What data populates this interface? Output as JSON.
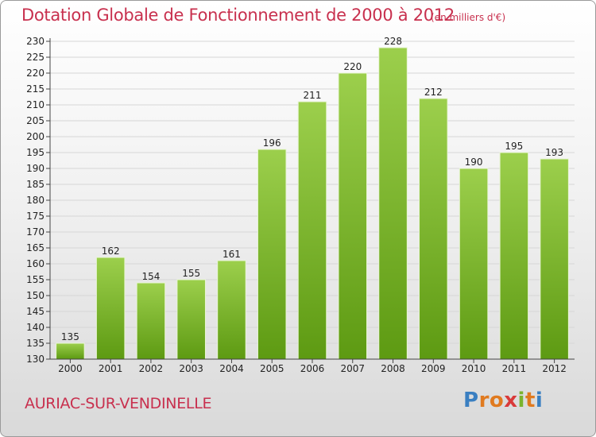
{
  "header": {
    "title": "Dotation Globale de Fonctionnement de 2000 à 2012",
    "subtitle": "(en milliers d'€)"
  },
  "footer": {
    "place": "AURIAC-SUR-VENDINELLE",
    "logo": {
      "letters": [
        "P",
        "r",
        "o",
        "x",
        "i",
        "t",
        "i"
      ],
      "colors": [
        "#3a7fc1",
        "#e07a1f",
        "#e07a1f",
        "#d93a3a",
        "#7ab32e",
        "#e07a1f",
        "#3a7fc1"
      ]
    }
  },
  "colors": {
    "bar_top": "#9ccf4c",
    "bar_bottom": "#5d9a12",
    "bar_edge": "#e8f5d4",
    "grid": "#d6d6d6",
    "accent": "#c8304e"
  },
  "chart_data": {
    "type": "bar",
    "categories": [
      "2000",
      "2001",
      "2002",
      "2003",
      "2004",
      "2005",
      "2006",
      "2007",
      "2008",
      "2009",
      "2010",
      "2011",
      "2012"
    ],
    "values": [
      135,
      162,
      154,
      155,
      161,
      196,
      211,
      220,
      228,
      212,
      190,
      195,
      193
    ],
    "value_labels": [
      "135",
      "162",
      "154",
      "155",
      "161",
      "196",
      "211",
      "220",
      "228",
      "212",
      "190",
      "195",
      "193"
    ],
    "y_ticks": [
      "130",
      "135",
      "140",
      "145",
      "150",
      "155",
      "160",
      "165",
      "170",
      "175",
      "180",
      "185",
      "190",
      "195",
      "200",
      "205",
      "210",
      "215",
      "220",
      "225",
      "230"
    ],
    "ylim": [
      130,
      230
    ],
    "grid": true
  }
}
